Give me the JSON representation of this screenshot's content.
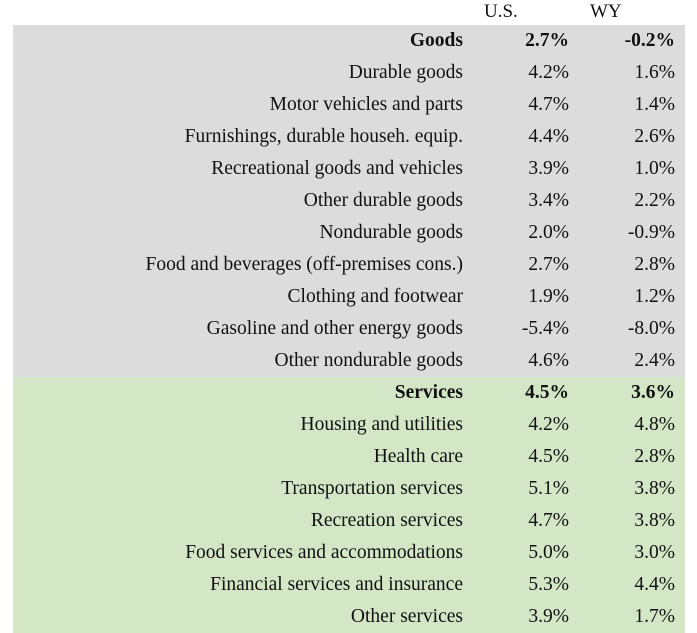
{
  "header": {
    "us": "U.S.",
    "wy": "WY"
  },
  "rows": [
    {
      "label": "Goods",
      "us": "2.7%",
      "wy": "-0.2%",
      "group": "goods",
      "bold": true
    },
    {
      "label": "Durable goods",
      "us": "4.2%",
      "wy": "1.6%",
      "group": "goods",
      "bold": false
    },
    {
      "label": "Motor vehicles and parts",
      "us": "4.7%",
      "wy": "1.4%",
      "group": "goods",
      "bold": false
    },
    {
      "label": "Furnishings, durable househ. equip.",
      "us": "4.4%",
      "wy": "2.6%",
      "group": "goods",
      "bold": false
    },
    {
      "label": "Recreational goods and vehicles",
      "us": "3.9%",
      "wy": "1.0%",
      "group": "goods",
      "bold": false
    },
    {
      "label": "Other durable goods",
      "us": "3.4%",
      "wy": "2.2%",
      "group": "goods",
      "bold": false
    },
    {
      "label": "Nondurable goods",
      "us": "2.0%",
      "wy": "-0.9%",
      "group": "goods",
      "bold": false
    },
    {
      "label": "Food and beverages (off-premises cons.)",
      "us": "2.7%",
      "wy": "2.8%",
      "group": "goods",
      "bold": false
    },
    {
      "label": "Clothing and footwear",
      "us": "1.9%",
      "wy": "1.2%",
      "group": "goods",
      "bold": false
    },
    {
      "label": "Gasoline and other energy goods",
      "us": "-5.4%",
      "wy": "-8.0%",
      "group": "goods",
      "bold": false
    },
    {
      "label": "Other nondurable goods",
      "us": "4.6%",
      "wy": "2.4%",
      "group": "goods",
      "bold": false
    },
    {
      "label": "Services",
      "us": "4.5%",
      "wy": "3.6%",
      "group": "services",
      "bold": true
    },
    {
      "label": "Housing and utilities",
      "us": "4.2%",
      "wy": "4.8%",
      "group": "services",
      "bold": false
    },
    {
      "label": "Health care",
      "us": "4.5%",
      "wy": "2.8%",
      "group": "services",
      "bold": false
    },
    {
      "label": "Transportation services",
      "us": "5.1%",
      "wy": "3.8%",
      "group": "services",
      "bold": false
    },
    {
      "label": "Recreation services",
      "us": "4.7%",
      "wy": "3.8%",
      "group": "services",
      "bold": false
    },
    {
      "label": "Food services and accommodations",
      "us": "5.0%",
      "wy": "3.0%",
      "group": "services",
      "bold": false
    },
    {
      "label": "Financial services and insurance",
      "us": "5.3%",
      "wy": "4.4%",
      "group": "services",
      "bold": false
    },
    {
      "label": "Other services",
      "us": "3.9%",
      "wy": "1.7%",
      "group": "services",
      "bold": false
    }
  ],
  "colors": {
    "goods_background": "#dcdcdc",
    "services_background": "#d3e6c6"
  }
}
